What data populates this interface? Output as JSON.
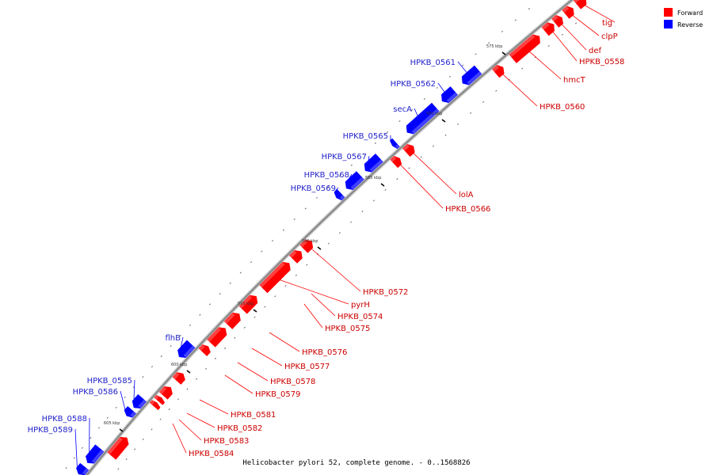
{
  "caption": "Helicobacter pylori 52, complete genome. - 0..1568826",
  "colors": {
    "forward": "#ff0000",
    "reverse": "#0000ff",
    "forward_text": "#cc0000",
    "reverse_text": "#2222cc",
    "backbone": "#888888"
  },
  "legend": [
    {
      "label": "Forward",
      "color": "#ff0000"
    },
    {
      "label": "Reverse",
      "color": "#0000ff"
    }
  ],
  "kbp_markers": [
    "575 kbp",
    "580 kbp",
    "585 kbp",
    "590 kbp",
    "595 kbp",
    "600 kbp",
    "605 kbp"
  ],
  "forward_genes": [
    "tig",
    "clpP",
    "def",
    "HPKB_0558",
    "hmcT",
    "HPKB_0560",
    "lolA",
    "HPKB_0566",
    "HPKB_0572",
    "pyrH",
    "HPKB_0574",
    "HPKB_0575",
    "HPKB_0576",
    "HPKB_0577",
    "HPKB_0578",
    "HPKB_0579",
    "HPKB_0581",
    "HPKB_0582",
    "HPKB_0583",
    "HPKB_0584"
  ],
  "reverse_genes": [
    "HPKB_0561",
    "HPKB_0562",
    "secA",
    "HPKB_0565",
    "HPKB_0567",
    "HPKB_0568",
    "HPKB_0569",
    "flhB",
    "HPKB_0585",
    "HPKB_0586",
    "HPKB_0588",
    "HPKB_0589"
  ]
}
